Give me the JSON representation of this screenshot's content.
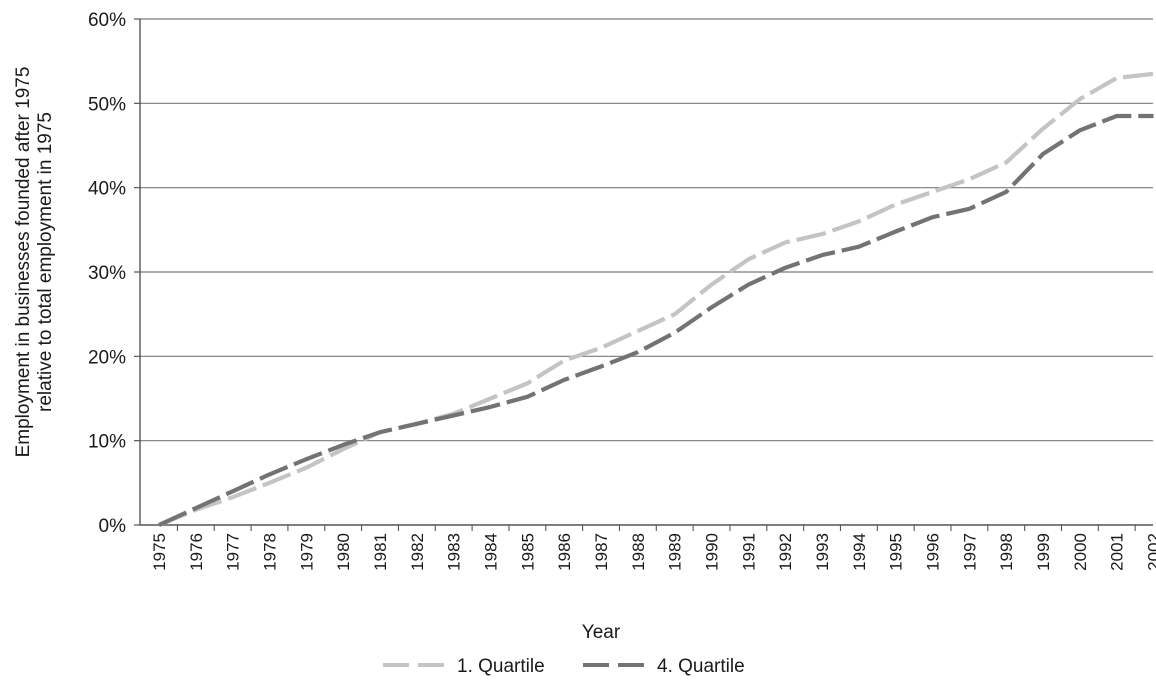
{
  "chart_data": {
    "type": "line",
    "title": "",
    "xlabel": "Year",
    "ylabel_lines": [
      "Employment in businesses founded after 1975",
      "relative to total employment in 1975"
    ],
    "ylim": [
      0,
      60
    ],
    "yticks": [
      0,
      10,
      20,
      30,
      40,
      50,
      60
    ],
    "ytick_labels": [
      "0%",
      "10%",
      "20%",
      "30%",
      "40%",
      "50%",
      "60%"
    ],
    "grid": "horizontal",
    "legend_position": "bottom",
    "x": [
      "1975",
      "1976",
      "1977",
      "1978",
      "1979",
      "1980",
      "1981",
      "1982",
      "1983",
      "1984",
      "1985",
      "1986",
      "1987",
      "1988",
      "1989",
      "1990",
      "1991",
      "1992",
      "1993",
      "1994",
      "1995",
      "1996",
      "1997",
      "1998",
      "1999",
      "2000",
      "2001",
      "2002"
    ],
    "series": [
      {
        "name": "1. Quartile",
        "color": "#c4c4c4",
        "style": "dashed",
        "values": [
          0,
          1.8,
          3.3,
          5.0,
          6.8,
          9.0,
          11.0,
          12.0,
          13.2,
          15.0,
          16.8,
          19.5,
          21.0,
          23.0,
          25.0,
          28.5,
          31.5,
          33.5,
          34.5,
          36.0,
          38.0,
          39.5,
          41.0,
          43.0,
          47.0,
          50.5,
          53.0,
          53.5
        ]
      },
      {
        "name": "4. Quartile",
        "color": "#737373",
        "style": "dashed",
        "values": [
          0,
          2.0,
          4.0,
          6.0,
          7.8,
          9.5,
          11.0,
          12.0,
          13.0,
          14.0,
          15.2,
          17.2,
          18.8,
          20.5,
          22.8,
          25.8,
          28.5,
          30.5,
          32.0,
          33.0,
          34.8,
          36.5,
          37.5,
          39.5,
          44.0,
          46.8,
          48.5,
          48.5
        ]
      }
    ]
  }
}
